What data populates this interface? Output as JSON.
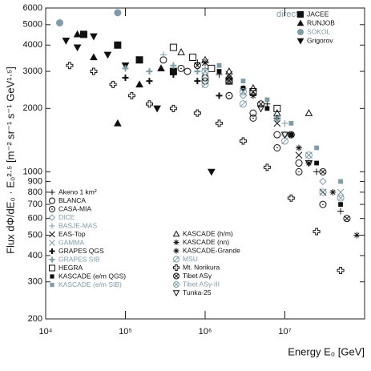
{
  "chart_data": {
    "type": "scatter",
    "xlabel": "Energy E₀ [GeV]",
    "ylabel": "Flux dΦ/dE₀ · E₀²·⁵ [m⁻² sr⁻¹ s⁻¹ GeV¹·⁵]",
    "legend_title": "direct:",
    "log_x": true,
    "log_y": true,
    "xlim": [
      10000,
      100000000
    ],
    "ylim": [
      200,
      6000
    ],
    "xticks": [
      {
        "value": 10000,
        "label": "10⁴"
      },
      {
        "value": 100000,
        "label": "10⁵"
      },
      {
        "value": 1000000,
        "label": "10⁶"
      },
      {
        "value": 10000000,
        "label": "10⁷"
      }
    ],
    "yticks": [
      200,
      300,
      400,
      500,
      600,
      700,
      800,
      900,
      1000,
      2000,
      3000,
      4000,
      5000,
      6000
    ],
    "series": [
      {
        "name": "JACEE",
        "color": "#111111",
        "marker": "square-filled",
        "x": [
          30000,
          80000,
          150000,
          400000
        ],
        "values": [
          4500,
          4000,
          3400,
          3000
        ]
      },
      {
        "name": "RUNJOB",
        "color": "#111111",
        "marker": "triangle-filled",
        "x": [
          25000,
          40000,
          80000,
          150000,
          280000
        ],
        "values": [
          4500,
          3500,
          1700,
          2600,
          3100
        ]
      },
      {
        "name": "SOKOL",
        "color": "#7f9ca8",
        "marker": "circle-filled",
        "x": [
          15000,
          80000
        ],
        "values": [
          5100,
          5700
        ]
      },
      {
        "name": "Grigorov",
        "color": "#111111",
        "marker": "triangle-down-filled",
        "x": [
          18000,
          25000,
          40000,
          60000,
          100000,
          250000,
          1200000
        ],
        "values": [
          4200,
          3900,
          4400,
          3600,
          3200,
          2000,
          1000
        ]
      },
      {
        "name": "Akeno 1 km²",
        "color": "#111111",
        "marker": "plus",
        "x": [
          800000,
          1500000,
          3000000,
          6000000,
          12000000,
          25000000,
          50000000
        ],
        "values": [
          3300,
          2900,
          2500,
          2100,
          1500,
          1000,
          650
        ]
      },
      {
        "name": "BLANCA",
        "color": "#111111",
        "marker": "circle",
        "x": [
          300000,
          600000,
          1000000,
          2000000,
          4000000,
          8000000,
          15000000
        ],
        "values": [
          3400,
          3000,
          2800,
          2300,
          1900,
          1500,
          1100
        ]
      },
      {
        "name": "CASA-MIA",
        "color": "#111111",
        "marker": "circle-dot",
        "x": [
          500000,
          1000000,
          2000000,
          4000000,
          8000000,
          15000000,
          30000000
        ],
        "values": [
          3100,
          2700,
          2300,
          1800,
          1300,
          1000,
          700
        ]
      },
      {
        "name": "DICE",
        "color": "#7f9ca8",
        "marker": "diamond",
        "x": [
          1000000,
          3000000,
          10000000,
          30000000
        ],
        "values": [
          2800,
          2300,
          1500,
          900
        ]
      },
      {
        "name": "BASJE-MAS",
        "color": "#7f9ca8",
        "marker": "plus",
        "x": [
          300000,
          1000000,
          3000000,
          10000000
        ],
        "values": [
          3600,
          3100,
          2500,
          1700
        ]
      },
      {
        "name": "EAS-Top",
        "color": "#111111",
        "marker": "cross",
        "x": [
          1000000,
          2000000,
          4000000,
          8000000,
          15000000,
          30000000
        ],
        "values": [
          3300,
          2900,
          2400,
          1700,
          1200,
          800
        ]
      },
      {
        "name": "GAMMA",
        "color": "#7f9ca8",
        "marker": "cross",
        "x": [
          1000000,
          3000000,
          8000000,
          20000000,
          50000000
        ],
        "values": [
          3000,
          2400,
          1800,
          1200,
          800
        ]
      },
      {
        "name": "GRAPES QGS",
        "color": "#111111",
        "marker": "plus-bold",
        "x": [
          100000,
          200000,
          400000,
          800000,
          1500000
        ],
        "values": [
          2800,
          2700,
          2900,
          2700,
          2300
        ]
      },
      {
        "name": "GRAPES SIB",
        "color": "#7f9ca8",
        "marker": "plus-bold",
        "x": [
          100000,
          200000,
          400000,
          800000
        ],
        "values": [
          3100,
          3000,
          3200,
          3000
        ]
      },
      {
        "name": "HEGRA",
        "color": "#111111",
        "marker": "square",
        "x": [
          400000,
          700000,
          1200000,
          2000000,
          4000000,
          8000000
        ],
        "values": [
          3900,
          3500,
          3100,
          2700,
          2400,
          2000
        ]
      },
      {
        "name": "KASCADE (e/m QGS)",
        "color": "#111111",
        "marker": "square-small",
        "x": [
          1500000,
          3000000,
          6000000,
          12000000,
          25000000,
          50000000
        ],
        "values": [
          3000,
          2500,
          2000,
          1500,
          1100,
          700
        ]
      },
      {
        "name": "KASCADE (e/m SIB)",
        "color": "#7f9ca8",
        "marker": "square-small",
        "x": [
          1500000,
          3000000,
          6000000,
          12000000,
          25000000,
          50000000
        ],
        "values": [
          3200,
          2700,
          2200,
          1700,
          1300,
          900
        ]
      },
      {
        "name": "KASCADE (h/m)",
        "color": "#111111",
        "marker": "triangle",
        "x": [
          500000,
          1000000,
          2000000,
          4000000,
          8000000,
          20000000
        ],
        "values": [
          3700,
          3400,
          3000,
          2500,
          1900,
          1900
        ]
      },
      {
        "name": "KASCADE (nn)",
        "color": "#111111",
        "marker": "asterisk",
        "x": [
          1000000,
          2000000,
          4000000,
          8000000,
          15000000
        ],
        "values": [
          3300,
          2800,
          2300,
          1800,
          1300
        ]
      },
      {
        "name": "KASCADE-Grande",
        "color": "#111111",
        "marker": "asterisk",
        "x": [
          20000000,
          40000000,
          80000000
        ],
        "values": [
          1100,
          800,
          500
        ]
      },
      {
        "name": "MSU",
        "color": "#7f9ca8",
        "marker": "circle-slash",
        "x": [
          1000000,
          3000000,
          10000000,
          30000000
        ],
        "values": [
          2600,
          2100,
          1400,
          800
        ]
      },
      {
        "name": "Mt. Norikura",
        "color": "#111111",
        "marker": "cross-open",
        "x": [
          20000,
          40000,
          70000,
          120000,
          200000,
          400000,
          800000,
          1500000,
          3000000,
          6000000,
          12000000,
          25000000,
          50000000
        ],
        "values": [
          3200,
          3000,
          2600,
          2300,
          2100,
          2000,
          1900,
          1700,
          1400,
          1050,
          750,
          520,
          340
        ]
      },
      {
        "name": "Tibet ASγ",
        "color": "#111111",
        "marker": "circle-x",
        "x": [
          800000,
          2000000,
          5000000,
          12000000,
          30000000,
          60000000
        ],
        "values": [
          3200,
          2700,
          2100,
          1500,
          1000,
          600
        ]
      },
      {
        "name": "Tibet ASγ-III",
        "color": "#7f9ca8",
        "marker": "circle-x",
        "x": [
          1000000,
          3000000,
          8000000,
          20000000,
          50000000
        ],
        "values": [
          3000,
          2400,
          1800,
          1200,
          750
        ]
      },
      {
        "name": "Tunka-25",
        "color": "#111111",
        "marker": "triangle-down",
        "x": [
          2000000,
          5000000,
          10000000,
          20000000
        ],
        "values": [
          2700,
          2000,
          1500,
          1100
        ]
      }
    ]
  }
}
